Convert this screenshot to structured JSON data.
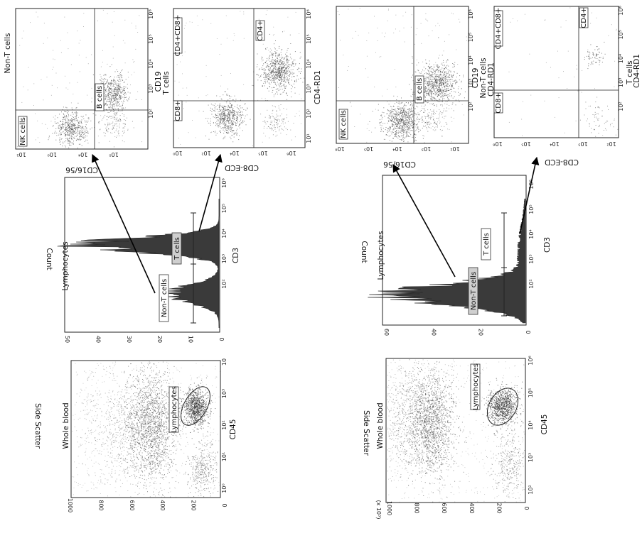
{
  "top": {
    "scatter": {
      "title": "Whole blood",
      "gate_label": "Lymphocytes",
      "ylabel": "Side Scatter",
      "xlabel": "CD45",
      "yticks": [
        "1000",
        "800",
        "600",
        "400",
        "200",
        "0"
      ],
      "xticks": [
        "10⁰",
        "10¹",
        "10²",
        "10³",
        "10"
      ]
    },
    "histogram": {
      "title": "Lymphocytes",
      "ylabel": "Count",
      "xlabel": "CD3",
      "yticks": [
        "50",
        "40",
        "30",
        "20",
        "10",
        "0"
      ],
      "xticks": [
        "10²",
        "10³",
        "10⁴",
        "10⁵",
        "10⁶"
      ],
      "gate_non_t": "Non-T cells",
      "gate_t": "T cells"
    },
    "nont_plot": {
      "title": "Non-T cells",
      "xlabel": "CD16/56",
      "ylabel": "CD19",
      "ylabel_cut": "T cells",
      "q_nk": "NK cells",
      "q_b": "B cells",
      "xticks": [
        "10²",
        "10⁰",
        "10⁴",
        "10⁵"
      ],
      "yticks": [
        "10²",
        "10³",
        "10⁴",
        "10⁵",
        "10⁶"
      ]
    },
    "t_plot": {
      "xlabel": "CD8-ECD",
      "ylabel": "CD4-RD1",
      "q_cd8": "CD8+",
      "q_cd4": "CD4+",
      "q_dp": "CD4+CD8+",
      "xticks": [
        "10⁰",
        "10²",
        "10⁴",
        "10⁵",
        "10⁶"
      ],
      "yticks": [
        "10¹",
        "10²",
        "10³",
        "10⁴",
        "10⁵",
        "10⁶"
      ]
    }
  },
  "bottom": {
    "scatter": {
      "title": "Whole blood",
      "gate_label": "Lymphocytes",
      "ylabel": "Side Scatter",
      "yunit": "(x 10³)",
      "xlabel": "CD45",
      "yticks": [
        "1000",
        "800",
        "600",
        "400",
        "200",
        "0"
      ],
      "xticks": [
        "10²",
        "10³",
        "10⁴",
        "10⁵",
        "10⁶"
      ]
    },
    "histogram": {
      "title": "Lymphocytes",
      "ylabel": "Count",
      "xlabel": "CD3",
      "yticks": [
        "60",
        "40",
        "20",
        "0"
      ],
      "xticks": [
        "10²",
        "10³",
        "10⁴",
        "10⁵",
        "10⁶"
      ],
      "gate_non_t": "Non-T cells",
      "gate_t": "T cells"
    },
    "nont_plot": {
      "title": "Non-T cells",
      "xlabel": "CD16/56",
      "ylabel": "CD19",
      "ylabel_cut": "CD4-RD1",
      "q_nk": "NK cells",
      "q_b": "B cells",
      "xticks": [
        "10⁶",
        "10⁵",
        "10⁴",
        "10³",
        "10²"
      ],
      "yticks": [
        "10²",
        "10³",
        "10⁴",
        "10⁵",
        "10⁶"
      ]
    },
    "t_plot": {
      "title": "T cells",
      "xlabel": "CD8-ECD",
      "ylabel": "CD4-RD1",
      "q_cd8": "CD8+",
      "q_cd4": "CD4+",
      "q_dp": "CD4+CD8+",
      "xticks": [
        "10⁶",
        "10⁵",
        "10⁴",
        "10³",
        "10²"
      ],
      "yticks": [
        "10²",
        "10³",
        "10⁴",
        "10⁵",
        "10⁶"
      ]
    }
  },
  "colors": {
    "dots": "#333333",
    "histogram_fill": "#3a3a3a",
    "gate_grey": "#cfcfcf",
    "arrow": "#000000"
  }
}
